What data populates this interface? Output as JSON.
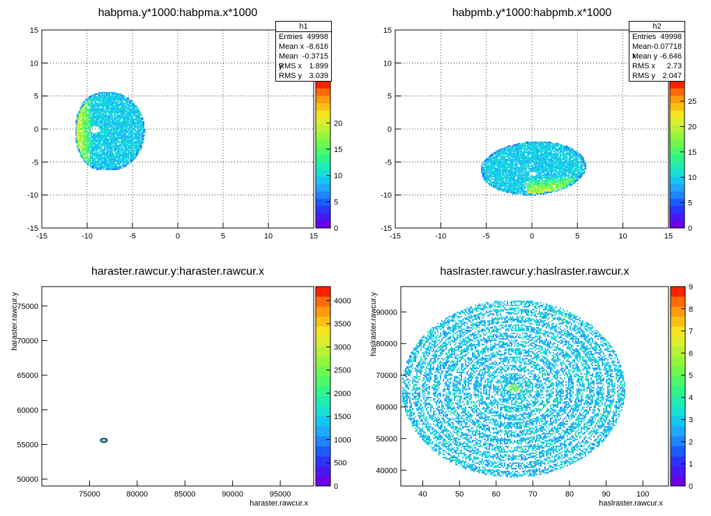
{
  "chart_data": [
    {
      "type": "heatmap",
      "title": "habpma.y*1000:habpma.x*1000",
      "xlabel": "",
      "ylabel": "",
      "xlim": [
        -15,
        15
      ],
      "ylim": [
        -15,
        15
      ],
      "xticks": [
        "-15",
        "-10",
        "-5",
        "0",
        "5",
        "10",
        "15"
      ],
      "yticks": [
        "-15",
        "-10",
        "-5",
        "0",
        "5",
        "10",
        "15"
      ],
      "zlim": [
        0,
        28
      ],
      "zticks": [
        "0",
        "5",
        "10",
        "15",
        "20"
      ],
      "grid": true,
      "blob": {
        "shape": "rounded-d",
        "x_range": [
          -11.4,
          -3.7
        ],
        "y_range": [
          -6.2,
          5.7
        ],
        "hot_edge": "left",
        "hole": [
          -9.2,
          0
        ]
      },
      "stats": {
        "name": "h1",
        "rows": [
          [
            "Entries",
            "49998"
          ],
          [
            "Mean x",
            "-8.616"
          ],
          [
            "Mean y",
            "-0.3715"
          ],
          [
            "RMS x",
            "1.899"
          ],
          [
            "RMS y",
            "3.039"
          ]
        ]
      }
    },
    {
      "type": "heatmap",
      "title": "habpmb.y*1000:habpmb.x*1000",
      "xlabel": "",
      "ylabel": "",
      "xlim": [
        -15,
        15
      ],
      "ylim": [
        -15,
        15
      ],
      "xticks": [
        "-15",
        "-10",
        "-5",
        "0",
        "5",
        "10",
        "15"
      ],
      "yticks": [
        "-15",
        "-10",
        "-5",
        "0",
        "5",
        "10",
        "15"
      ],
      "zlim": [
        0,
        29
      ],
      "zticks": [
        "0",
        "5",
        "10",
        "15",
        "20",
        "25"
      ],
      "grid": true,
      "blob": {
        "shape": "ellipse",
        "x_range": [
          -5.7,
          5.9
        ],
        "y_range": [
          -9.9,
          -1.8
        ],
        "hot_edge": "bottom-right",
        "hole": [
          0,
          -6.7
        ]
      },
      "stats": {
        "name": "h2",
        "rows": [
          [
            "Entries",
            "49998"
          ],
          [
            "Mean x",
            "-0.07718"
          ],
          [
            "Mean y",
            "-6.646"
          ],
          [
            "RMS x",
            "2.73"
          ],
          [
            "RMS y",
            "2.047"
          ]
        ]
      }
    },
    {
      "type": "heatmap",
      "title": "haraster.rawcur.y:haraster.rawcur.x",
      "xlabel": "haraster.rawcur.x",
      "ylabel": "haraster.rawcur.y",
      "xlim": [
        70000,
        98500
      ],
      "ylim": [
        49000,
        77800
      ],
      "xticks": [
        "75000",
        "80000",
        "85000",
        "90000",
        "95000"
      ],
      "yticks": [
        "50000",
        "55000",
        "60000",
        "65000",
        "70000",
        "75000"
      ],
      "zlim": [
        0,
        4300
      ],
      "zticks": [
        "0",
        "500",
        "1000",
        "1500",
        "2000",
        "2500",
        "3000",
        "3500",
        "4000"
      ],
      "grid": false,
      "spot": {
        "x": 76500,
        "y": 55600
      }
    },
    {
      "type": "heatmap",
      "title": "haslraster.rawcur.y:haslraster.rawcur.x",
      "xlabel": "haslraster.rawcur.x",
      "ylabel": "haslraster.rawcur.y",
      "xlim": [
        34,
        107
      ],
      "ylim": [
        35000,
        98000
      ],
      "xticks": [
        "40",
        "50",
        "60",
        "70",
        "80",
        "90",
        "100"
      ],
      "yticks": [
        "40000",
        "50000",
        "60000",
        "70000",
        "80000",
        "90000"
      ],
      "zlim": [
        0,
        9
      ],
      "zticks": [
        "0",
        "1",
        "2",
        "3",
        "4",
        "5",
        "6",
        "7",
        "8",
        "9"
      ],
      "grid": false,
      "blob": {
        "shape": "ring-disk",
        "center": [
          64.5,
          66000
        ],
        "rx": 30.5,
        "ry": 28000,
        "rings": 11
      }
    }
  ]
}
